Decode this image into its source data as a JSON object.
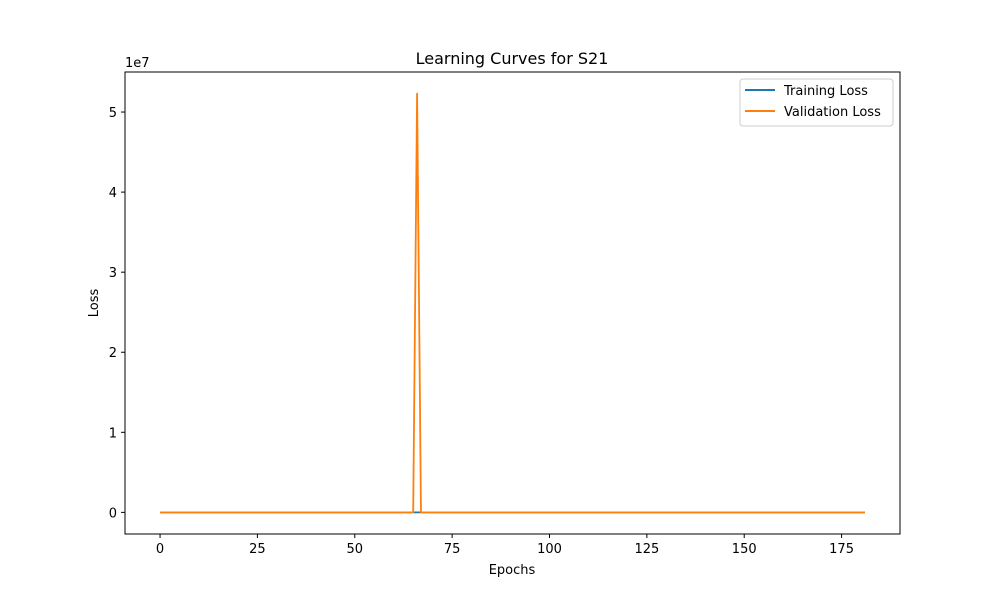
{
  "chart_data": {
    "type": "line",
    "title": "Learning Curves for S21",
    "xlabel": "Epochs",
    "ylabel": "Loss",
    "y_offset_label": "1e7",
    "xlim": [
      -9,
      190
    ],
    "ylim": [
      -2700000,
      55000000
    ],
    "x_ticks": [
      0,
      25,
      50,
      75,
      100,
      125,
      150,
      175
    ],
    "y_ticks": [
      0,
      1,
      2,
      3,
      4,
      5
    ],
    "y_tick_scale": 10000000,
    "grid": false,
    "legend_position": "top-right",
    "colors": {
      "training": "#1f77b4",
      "validation": "#ff7f0e"
    },
    "series": [
      {
        "name": "Training Loss",
        "color": "#1f77b4",
        "points": [
          [
            0,
            0
          ],
          [
            65,
            0
          ],
          [
            66,
            0
          ],
          [
            67,
            0
          ],
          [
            181,
            0
          ]
        ]
      },
      {
        "name": "Validation Loss",
        "color": "#ff7f0e",
        "points": [
          [
            0,
            0
          ],
          [
            65,
            0
          ],
          [
            66,
            52300000
          ],
          [
            67,
            0
          ],
          [
            181,
            0
          ]
        ]
      }
    ]
  }
}
